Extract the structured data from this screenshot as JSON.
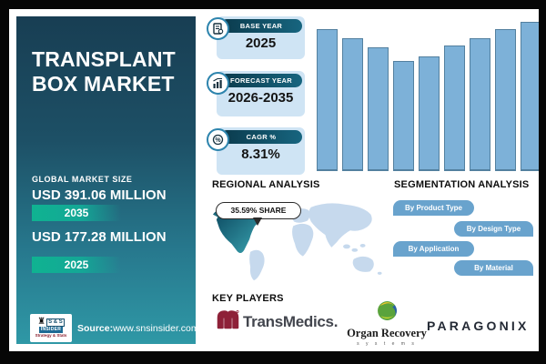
{
  "sidebar": {
    "title_line1": "TRANSPLANT",
    "title_line2": "BOX MARKET",
    "market_size_label": "GLOBAL MARKET SIZE",
    "values": [
      {
        "amount": "USD 391.06 MILLION",
        "year": "2035"
      },
      {
        "amount": "USD 177.28 MILLION",
        "year": "2025"
      }
    ],
    "source_label": "Source:",
    "source_url": "www.snsinsider.com",
    "logo": {
      "top": "S & S",
      "mid": "INSIDER",
      "tagline": "Strategy & Stats",
      "chess": "♜"
    }
  },
  "stats": [
    {
      "label": "BASE YEAR",
      "value": "2025"
    },
    {
      "label": "FORECAST YEAR",
      "value": "2026-2035"
    },
    {
      "label": "CAGR %",
      "value": "8.31%"
    }
  ],
  "chart_data": {
    "type": "bar",
    "title": "",
    "xlabel": "",
    "ylabel": "",
    "values": [
      95,
      89,
      83,
      74,
      77,
      84,
      89,
      95,
      100
    ],
    "ylim": [
      0,
      100
    ],
    "grid": false,
    "legend": "none",
    "bar_color": "#7db1d8",
    "bar_border": "#53809f"
  },
  "regional": {
    "title": "REGIONAL ANALYSIS",
    "share_badge": "35.59% SHARE",
    "highlight_region": "North America"
  },
  "segmentation": {
    "title": "SEGMENTATION ANALYSIS",
    "items": [
      "By Product Type",
      "By Design Type",
      "By Application",
      "By Material"
    ]
  },
  "key_players": {
    "title": "KEY PLAYERS",
    "players": [
      {
        "name": "TransMedics."
      },
      {
        "name": "Organ Recovery",
        "subtext": "s y s t e m s"
      },
      {
        "name": "PARAGONIX"
      }
    ]
  },
  "colors": {
    "sidebar_top": "#183e53",
    "sidebar_bottom": "#2f98a6",
    "badge_green": "#0fb391",
    "card_blue": "#cfe4f4",
    "pill_dark": "#0b3a4c",
    "bar_blue": "#7db1d8",
    "segment_pill_blue": "#69a3cd",
    "map_land": "#c6d9ed",
    "map_highlight": "#0d4a61",
    "transmedics_red": "#8e2138"
  }
}
